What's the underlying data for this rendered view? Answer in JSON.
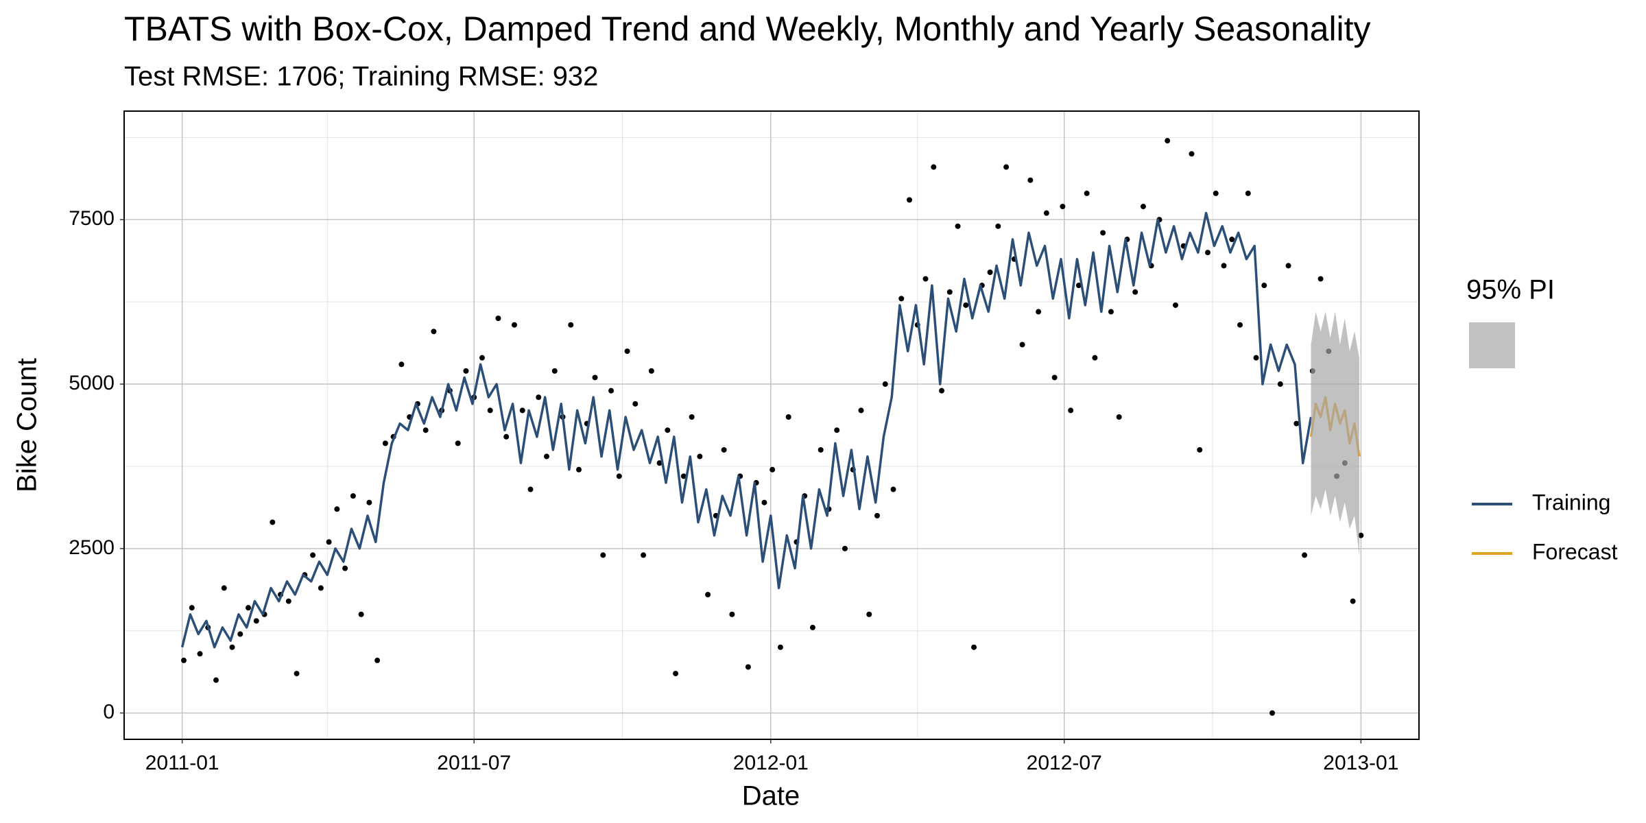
{
  "chart_data": {
    "type": "line",
    "title": "TBATS with Box-Cox, Damped Trend and Weekly, Monthly and Yearly Seasonality",
    "subtitle": "Test RMSE: 1706; Training RMSE: 932",
    "x_label": "Date",
    "y_label": "Bike Count",
    "xlim": [
      -36,
      767
    ],
    "ylim": [
      -400,
      9150
    ],
    "xticks": [
      {
        "value": 0,
        "label": "2011-01"
      },
      {
        "value": 181,
        "label": "2011-07"
      },
      {
        "value": 365,
        "label": "2012-01"
      },
      {
        "value": 547,
        "label": "2012-07"
      },
      {
        "value": 731,
        "label": "2013-01"
      }
    ],
    "yticks": [
      0,
      2500,
      5000,
      7500
    ],
    "x_minor": [
      90,
      273,
      456,
      639
    ],
    "y_minor": [
      1250,
      3750,
      6250,
      8750
    ],
    "grid": true,
    "legend_position": "right",
    "series": [
      {
        "type": "scatter",
        "color": "#000000",
        "x": [
          1,
          6,
          11,
          16,
          21,
          26,
          31,
          36,
          41,
          46,
          51,
          56,
          61,
          66,
          71,
          76,
          81,
          86,
          91,
          96,
          101,
          106,
          111,
          116,
          121,
          126,
          131,
          136,
          141,
          146,
          151,
          156,
          161,
          166,
          171,
          176,
          181,
          186,
          191,
          196,
          201,
          206,
          211,
          216,
          221,
          226,
          231,
          236,
          241,
          246,
          251,
          256,
          261,
          266,
          271,
          276,
          281,
          286,
          291,
          296,
          301,
          306,
          311,
          316,
          321,
          326,
          331,
          336,
          341,
          346,
          351,
          356,
          361,
          366,
          371,
          376,
          381,
          386,
          391,
          396,
          401,
          406,
          411,
          416,
          421,
          426,
          431,
          436,
          441,
          446,
          451,
          456,
          461,
          466,
          471,
          476,
          481,
          486,
          491,
          496,
          501,
          506,
          511,
          516,
          521,
          526,
          531,
          536,
          541,
          546,
          551,
          556,
          561,
          566,
          571,
          576,
          581,
          586,
          591,
          596,
          601,
          606,
          611,
          616,
          621,
          626,
          631,
          636,
          641,
          646,
          651,
          656,
          661,
          666,
          671,
          676,
          681,
          686,
          691,
          696,
          701,
          706,
          711,
          716,
          721,
          726,
          731
        ],
        "values": [
          800,
          1600,
          900,
          1300,
          500,
          1900,
          1000,
          1200,
          1600,
          1400,
          1500,
          2900,
          1800,
          1700,
          600,
          2100,
          2400,
          1900,
          2600,
          3100,
          2200,
          3300,
          1500,
          3200,
          800,
          4100,
          4200,
          5300,
          4500,
          4700,
          4300,
          5800,
          4600,
          4900,
          4100,
          5200,
          4800,
          5400,
          4600,
          6000,
          4200,
          5900,
          4600,
          3400,
          4800,
          3900,
          5200,
          4500,
          5900,
          3700,
          4400,
          5100,
          2400,
          4900,
          3600,
          5500,
          4700,
          2400,
          5200,
          3800,
          4300,
          600,
          3600,
          4500,
          3900,
          1800,
          3000,
          4000,
          1500,
          3600,
          700,
          3500,
          3200,
          3700,
          1000,
          4500,
          2600,
          3300,
          1300,
          4000,
          3100,
          4300,
          2500,
          3700,
          4600,
          1500,
          3000,
          5000,
          3400,
          6300,
          7800,
          5900,
          6600,
          8300,
          4900,
          6400,
          7400,
          6200,
          1000,
          6500,
          6700,
          7400,
          8300,
          6900,
          5600,
          8100,
          6100,
          7600,
          5100,
          7700,
          4600,
          6500,
          7900,
          5400,
          7300,
          6100,
          4500,
          7200,
          6400,
          7700,
          6800,
          7500,
          8700,
          6200,
          7100,
          8500,
          4000,
          7000,
          7900,
          6800,
          7200,
          5900,
          7900,
          5400,
          6500,
          0,
          5000,
          6800,
          4400,
          2400,
          5200,
          6600,
          5500,
          3600,
          3800,
          1700,
          2700
        ]
      },
      {
        "name": "Training",
        "color": "#2c4f77",
        "x": [
          0,
          5,
          10,
          15,
          20,
          25,
          30,
          35,
          40,
          45,
          50,
          55,
          60,
          65,
          70,
          75,
          80,
          85,
          90,
          95,
          100,
          105,
          110,
          115,
          120,
          125,
          130,
          135,
          140,
          145,
          150,
          155,
          160,
          165,
          170,
          175,
          180,
          185,
          190,
          195,
          200,
          205,
          210,
          215,
          220,
          225,
          230,
          235,
          240,
          245,
          250,
          255,
          260,
          265,
          270,
          275,
          280,
          285,
          290,
          295,
          300,
          305,
          310,
          315,
          320,
          325,
          330,
          335,
          340,
          345,
          350,
          355,
          360,
          365,
          370,
          375,
          380,
          385,
          390,
          395,
          400,
          405,
          410,
          415,
          420,
          425,
          430,
          435,
          440,
          445,
          450,
          455,
          460,
          465,
          470,
          475,
          480,
          485,
          490,
          495,
          500,
          505,
          510,
          515,
          520,
          525,
          530,
          535,
          540,
          545,
          550,
          555,
          560,
          565,
          570,
          575,
          580,
          585,
          590,
          595,
          600,
          605,
          610,
          615,
          620,
          625,
          630,
          635,
          640,
          645,
          650,
          655,
          660,
          665,
          670,
          675,
          680,
          685,
          690,
          695,
          700
        ],
        "values": [
          1000,
          1500,
          1200,
          1400,
          1000,
          1300,
          1100,
          1500,
          1300,
          1700,
          1500,
          1900,
          1700,
          2000,
          1800,
          2100,
          2000,
          2300,
          2100,
          2500,
          2300,
          2800,
          2500,
          3000,
          2600,
          3500,
          4100,
          4400,
          4300,
          4700,
          4400,
          4800,
          4500,
          5000,
          4600,
          5100,
          4700,
          5300,
          4800,
          5000,
          4300,
          4700,
          3800,
          4600,
          4200,
          4800,
          4000,
          4700,
          3700,
          4600,
          4100,
          4800,
          3900,
          4600,
          3700,
          4500,
          4000,
          4300,
          3800,
          4200,
          3500,
          4200,
          3200,
          3900,
          2900,
          3400,
          2700,
          3300,
          3000,
          3600,
          2700,
          3500,
          2300,
          3000,
          1900,
          2700,
          2200,
          3300,
          2500,
          3400,
          3000,
          4100,
          3300,
          4000,
          3100,
          3900,
          3200,
          4200,
          4800,
          6200,
          5500,
          6200,
          5300,
          6500,
          5000,
          6300,
          5800,
          6600,
          6000,
          6500,
          6100,
          6800,
          6300,
          7200,
          6500,
          7300,
          6800,
          7100,
          6300,
          6900,
          6000,
          6900,
          6200,
          7000,
          6100,
          7100,
          6400,
          7200,
          6500,
          7300,
          6800,
          7500,
          7000,
          7400,
          6900,
          7300,
          7000,
          7600,
          7100,
          7400,
          7000,
          7300,
          6900,
          7100,
          5000,
          5600,
          5200,
          5600,
          5300,
          3800,
          4500
        ]
      },
      {
        "name": "Forecast",
        "color": "#e3a126",
        "x": [
          700,
          703,
          706,
          709,
          712,
          715,
          718,
          721,
          724,
          727,
          730
        ],
        "values": [
          4200,
          4700,
          4500,
          4800,
          4300,
          4700,
          4400,
          4600,
          4100,
          4400,
          3900
        ]
      }
    ],
    "band": {
      "name": "95% PI",
      "color": "#a6a6a6",
      "x": [
        700,
        703,
        706,
        709,
        712,
        715,
        718,
        721,
        724,
        727,
        730
      ],
      "lower": [
        3000,
        3300,
        3100,
        3400,
        3000,
        3300,
        2900,
        3200,
        2800,
        3000,
        2400
      ],
      "upper": [
        5600,
        6100,
        5800,
        6100,
        5700,
        6100,
        5600,
        6000,
        5500,
        5800,
        5400
      ]
    }
  }
}
